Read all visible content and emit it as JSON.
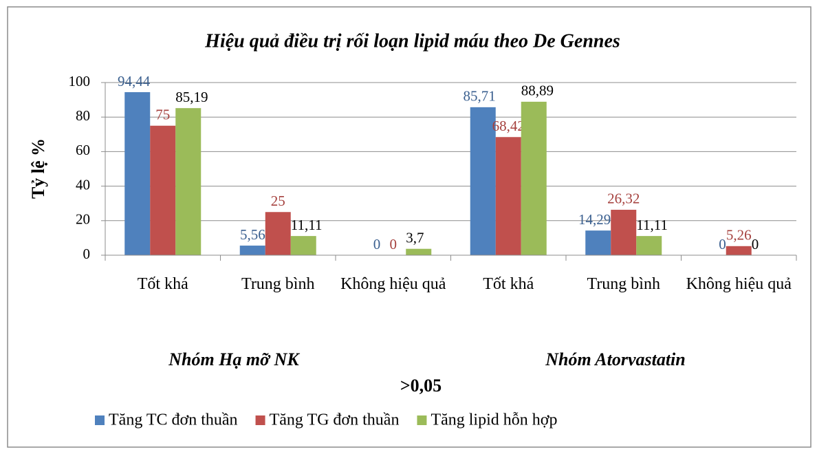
{
  "chart_data": {
    "type": "bar",
    "title": "Hiệu quả điều trị rối loạn lipid máu theo De Gennes",
    "ylabel": "Tỷ lệ %",
    "categories": [
      "Tốt khá",
      "Trung bình",
      "Không hiệu quả",
      "Tốt khá",
      "Trung bình",
      "Không hiệu quả"
    ],
    "group_labels": [
      "Nhóm Hạ mỡ NK",
      "Nhóm Atorvastatin"
    ],
    "annotation": ">0,05",
    "series": [
      {
        "name": "Tăng TC đơn thuần",
        "color": "#4f81bd",
        "values": [
          94.44,
          5.56,
          0,
          85.71,
          14.29,
          0
        ],
        "value_labels": [
          "94,44",
          "5,56",
          "0",
          "85,71",
          "14,29",
          "0"
        ]
      },
      {
        "name": "Tăng TG đơn thuần",
        "color": "#c0504d",
        "values": [
          75,
          25,
          0,
          68.42,
          26.32,
          5.26
        ],
        "value_labels": [
          "75",
          "25",
          "0",
          "68,42",
          "26,32",
          "5,26"
        ]
      },
      {
        "name": "Tăng lipid hỗn hợp",
        "color": "#9bbb59",
        "values": [
          85.19,
          11.11,
          3.7,
          88.89,
          11.11,
          0
        ],
        "value_labels": [
          "85,19",
          "11,11",
          "3,7",
          "88,89",
          "11,11",
          "0"
        ]
      }
    ],
    "ylim": [
      0,
      100
    ],
    "yticks": [
      0,
      20,
      40,
      60,
      80,
      100
    ],
    "grid": true,
    "legend": "bottom"
  }
}
